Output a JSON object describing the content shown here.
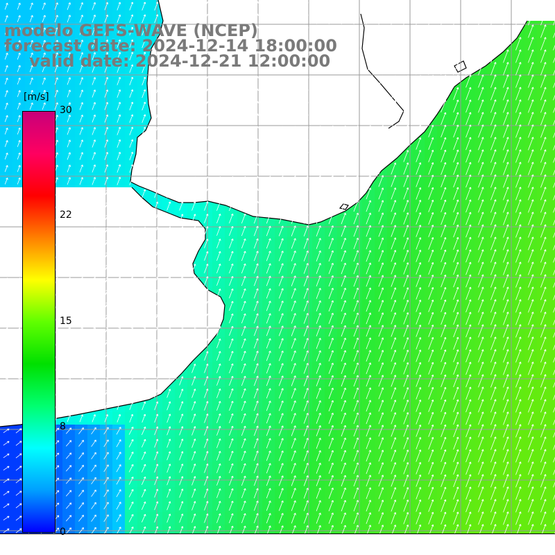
{
  "header": {
    "model": "modelo GEFS-WAVE (NCEP)",
    "forecast": "forecast date: 2024-12-14 18:00:00",
    "valid": "valid date: 2024-12-21 12:00:00"
  },
  "colorbar": {
    "unit": "[m/s]",
    "ticks": [
      "30",
      "22",
      "15",
      "8",
      "0"
    ],
    "tick_values": [
      30,
      22,
      15,
      8,
      0
    ],
    "range": [
      0,
      30
    ],
    "colors": [
      "#0000ff",
      "#00a0ff",
      "#00ffff",
      "#00ff70",
      "#00e000",
      "#60ff00",
      "#ffff00",
      "#ff8000",
      "#ff0000",
      "#ff0060",
      "#c8007a"
    ]
  },
  "map": {
    "field": "wind speed",
    "wind_direction": "towards north-east",
    "land_color": "#ffffff",
    "grid_color": "#9a9a9a",
    "coast_color": "#000000"
  }
}
